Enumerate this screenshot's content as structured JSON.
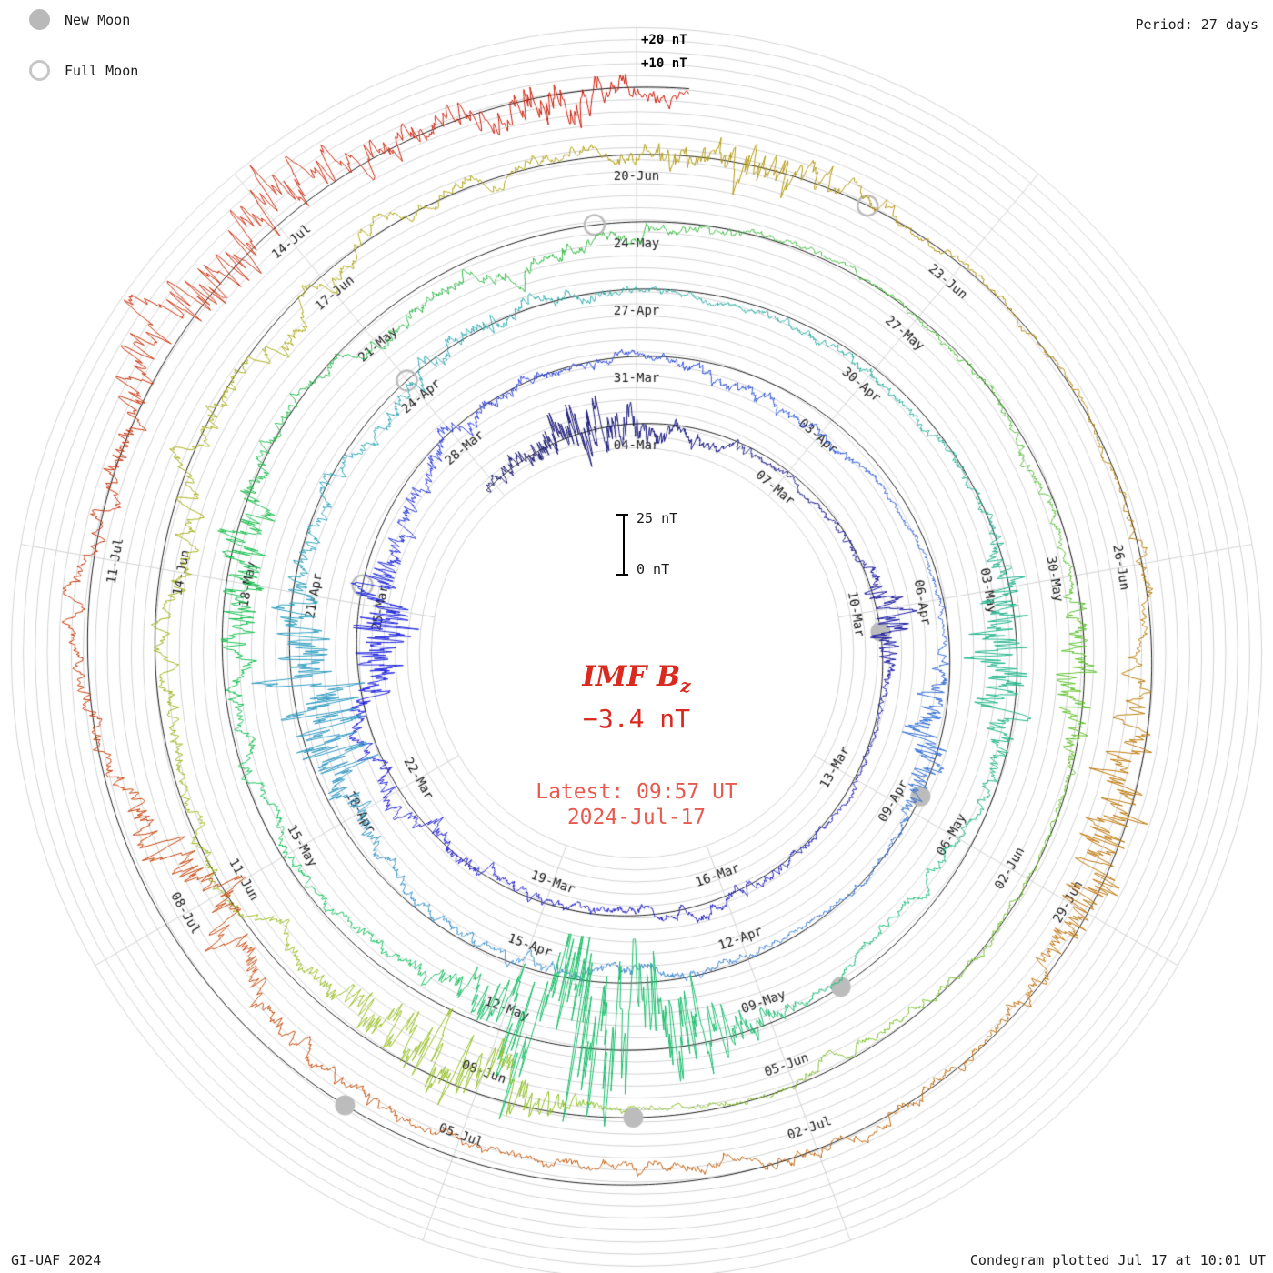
{
  "legend": {
    "new_moon_label": "New Moon",
    "full_moon_label": "Full Moon"
  },
  "header": {
    "period_label": "Period: 27 days"
  },
  "footer": {
    "credit": "GI-UAF 2024",
    "plotted": "Condegram plotted Jul 17 at 10:01 UT"
  },
  "center": {
    "title": "IMF B",
    "title_sub": "z",
    "value": "−3.4 nT",
    "latest_time": "Latest: 09:57 UT",
    "latest_date": "2024-Jul-17"
  },
  "scale_bar": {
    "top": "25 nT",
    "bottom": "0 nT"
  },
  "reference_labels": {
    "plus20": "+20 nT",
    "plus10": "+10 nT"
  },
  "chart_data": {
    "type": "line",
    "layout": "condegram-spiral-polar",
    "quantity": "IMF Bz",
    "units": "nT",
    "period_days": 27,
    "spokes_per_rotation": 9,
    "days_per_spoke": 3,
    "scale_bar_nT": 25,
    "reference_circles_nT": [
      10,
      20
    ],
    "latest_value_nT": -3.4,
    "latest_timestamp": "2024-Jul-17 09:57 UT",
    "plotted_timestamp": "Jul 17 at 10:01 UT",
    "rotations": [
      {
        "start": "04-Mar",
        "labels": [
          "04-Mar",
          "07-Mar",
          "10-Mar",
          "13-Mar",
          "16-Mar",
          "19-Mar",
          "22-Mar",
          "25-Mar",
          "28-Mar"
        ]
      },
      {
        "start": "31-Mar",
        "labels": [
          "31-Mar",
          "03-Apr",
          "06-Apr",
          "09-Apr",
          "12-Apr",
          "15-Apr",
          "18-Apr",
          "21-Apr",
          "24-Apr"
        ]
      },
      {
        "start": "27-Apr",
        "labels": [
          "27-Apr",
          "30-Apr",
          "03-May",
          "06-May",
          "09-May",
          "12-May",
          "15-May",
          "18-May",
          "21-May"
        ]
      },
      {
        "start": "24-May",
        "labels": [
          "24-May",
          "27-May",
          "30-May",
          "02-Jun",
          "05-Jun",
          "08-Jun",
          "11-Jun",
          "14-Jun",
          "17-Jun"
        ]
      },
      {
        "start": "20-Jun",
        "labels": [
          "20-Jun",
          "23-Jun",
          "26-Jun",
          "29-Jun",
          "02-Jul",
          "05-Jul",
          "08-Jul",
          "11-Jul",
          "14-Jul"
        ]
      }
    ],
    "moons": {
      "new": [
        {
          "date": "10-Mar",
          "t_days": 6.38
        },
        {
          "date": "08-Apr",
          "t_days": 35.76
        },
        {
          "date": "08-May",
          "t_days": 65.14
        },
        {
          "date": "06-Jun",
          "t_days": 94.53
        },
        {
          "date": "05-Jul",
          "t_days": 123.96
        }
      ],
      "full": [
        {
          "date": "25-Mar",
          "t_days": 21.29
        },
        {
          "date": "23-Apr",
          "t_days": 50.99
        },
        {
          "date": "23-May",
          "t_days": 80.58
        },
        {
          "date": "22-Jun",
          "t_days": 110.05
        }
      ]
    },
    "storm_events": [
      {
        "date": "03-Mar",
        "t_days": -1.0,
        "width_days": 1.1,
        "approx_peak_nT": 11
      },
      {
        "date": "10-Mar",
        "t_days": 6.2,
        "width_days": 0.7,
        "approx_peak_nT": 7
      },
      {
        "date": "24-Mar",
        "t_days": 20.6,
        "width_days": 1.0,
        "approx_peak_nT": 14
      },
      {
        "date": "08-Apr",
        "t_days": 35.0,
        "width_days": 0.8,
        "approx_peak_nT": 8
      },
      {
        "date": "19-Apr",
        "t_days": 46.6,
        "width_days": 1.3,
        "approx_peak_nT": 16
      },
      {
        "date": "04-May",
        "t_days": 60.8,
        "width_days": 1.0,
        "approx_peak_nT": 13
      },
      {
        "date": "10-May",
        "t_days": 67.9,
        "width_days": 1.2,
        "approx_peak_nT": 42
      },
      {
        "date": "17-May",
        "t_days": 75.2,
        "width_days": 0.8,
        "approx_peak_nT": 10
      },
      {
        "date": "01-Jun",
        "t_days": 88.0,
        "width_days": 0.7,
        "approx_peak_nT": 8
      },
      {
        "date": "08-Jun",
        "t_days": 96.4,
        "width_days": 1.0,
        "approx_peak_nT": 17
      },
      {
        "date": "21-Jun",
        "t_days": 109.0,
        "width_days": 0.8,
        "approx_peak_nT": 9
      },
      {
        "date": "28-Jun",
        "t_days": 116.4,
        "width_days": 1.1,
        "approx_peak_nT": 13
      },
      {
        "date": "08-Jul",
        "t_days": 126.0,
        "width_days": 0.9,
        "approx_peak_nT": 10
      },
      {
        "date": "13-Jul",
        "t_days": 131.5,
        "width_days": 1.6,
        "approx_peak_nT": 12
      },
      {
        "date": "16-Jul",
        "t_days": 134.4,
        "width_days": 0.7,
        "approx_peak_nT": 9
      }
    ],
    "colormap": [
      [
        "0.00",
        "#18186b"
      ],
      [
        "0.09",
        "#1f1fb4"
      ],
      [
        "0.16",
        "#2323dd"
      ],
      [
        "0.24",
        "#2e59d8"
      ],
      [
        "0.31",
        "#3f86d2"
      ],
      [
        "0.38",
        "#2fa6bb"
      ],
      [
        "0.44",
        "#28b29b"
      ],
      [
        "0.50",
        "#1cbd72"
      ],
      [
        "0.55",
        "#14c257"
      ],
      [
        "0.60",
        "#2fbb45"
      ],
      [
        "0.66",
        "#63c12e"
      ],
      [
        "0.72",
        "#95bf20"
      ],
      [
        "0.78",
        "#acab12"
      ],
      [
        "0.83",
        "#b98e0e"
      ],
      [
        "0.88",
        "#c06c0c"
      ],
      [
        "0.93",
        "#c4470a"
      ],
      [
        "1.00",
        "#cd1607"
      ]
    ],
    "grid_color": "#d2d2d2",
    "baseline_color": "#000000",
    "moon_marker_color": "#bcbcbc"
  }
}
